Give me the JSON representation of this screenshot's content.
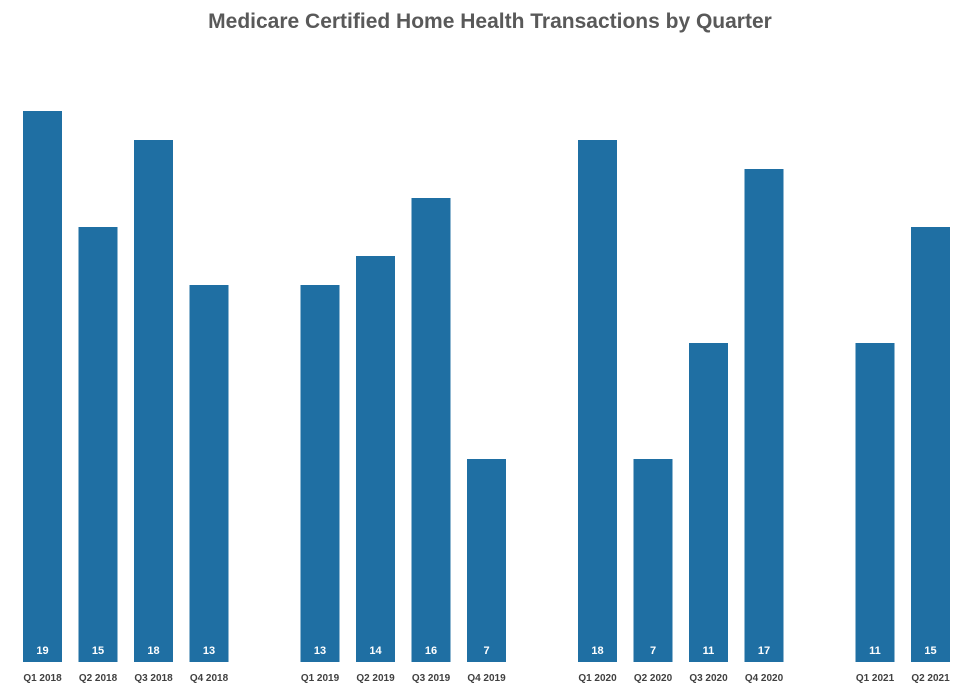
{
  "chart_data": {
    "type": "bar",
    "title": "Medicare Certified Home Health Transactions by Quarter",
    "xlabel": "",
    "ylabel": "",
    "ylim": [
      0,
      19
    ],
    "grid": false,
    "legend": "none",
    "bar_color": "#1f6fa3",
    "label_color": "#ffffff",
    "tick_color": "#404040",
    "groups": [
      {
        "categories": [
          "Q1 2018",
          "Q2 2018",
          "Q3 2018",
          "Q4 2018"
        ],
        "values": [
          19,
          15,
          18,
          13
        ]
      },
      {
        "categories": [
          "Q1 2019",
          "Q2 2019",
          "Q3 2019",
          "Q4 2019"
        ],
        "values": [
          13,
          14,
          16,
          7
        ]
      },
      {
        "categories": [
          "Q1 2020",
          "Q2 2020",
          "Q3 2020",
          "Q4 2020"
        ],
        "values": [
          18,
          7,
          11,
          17
        ]
      },
      {
        "categories": [
          "Q1 2021",
          "Q2 2021"
        ],
        "values": [
          11,
          15
        ]
      }
    ]
  }
}
